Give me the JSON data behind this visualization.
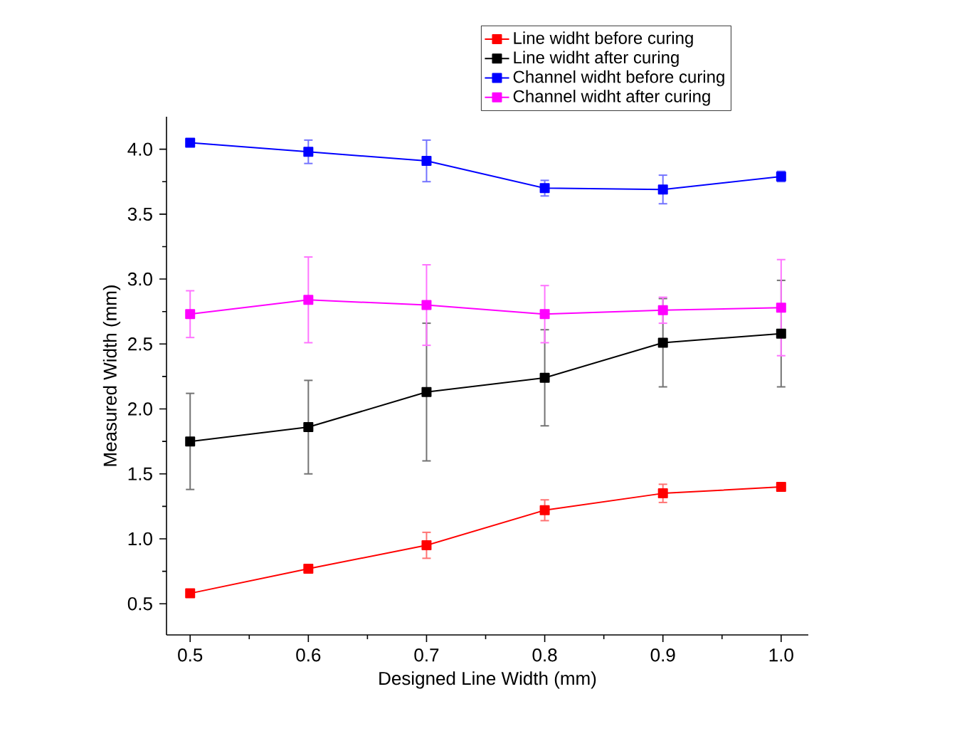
{
  "chart_data": {
    "type": "line",
    "xlabel": "Designed Line Width (mm)",
    "ylabel": "Measured Width (mm)",
    "x": [
      0.5,
      0.6,
      0.7,
      0.8,
      0.9,
      1.0
    ],
    "series": [
      {
        "name": "Line widht before curing",
        "color": "#ff0000",
        "values": [
          0.58,
          0.77,
          0.95,
          1.22,
          1.35,
          1.4
        ],
        "errors": [
          0.02,
          0.02,
          0.1,
          0.08,
          0.07,
          0.03
        ]
      },
      {
        "name": "Line widht after curing",
        "color": "#000000",
        "values": [
          1.75,
          1.86,
          2.13,
          2.24,
          2.51,
          2.58
        ],
        "errors": [
          0.37,
          0.36,
          0.53,
          0.37,
          0.34,
          0.41
        ]
      },
      {
        "name": "Channel widht before curing",
        "color": "#0000ff",
        "values": [
          4.05,
          3.98,
          3.91,
          3.7,
          3.69,
          3.79
        ],
        "errors": [
          0.02,
          0.09,
          0.16,
          0.06,
          0.11,
          0.04
        ]
      },
      {
        "name": "Channel widht after curing",
        "color": "#ff00ff",
        "values": [
          2.73,
          2.84,
          2.8,
          2.73,
          2.76,
          2.78
        ],
        "errors": [
          0.18,
          0.33,
          0.31,
          0.22,
          0.1,
          0.37
        ]
      }
    ],
    "xlim": [
      0.48,
      1.023
    ],
    "ylim": [
      0.26,
      4.25
    ],
    "xticks": [
      0.5,
      0.6,
      0.7,
      0.8,
      0.9,
      {
        "value": 1,
        "label": "1.0"
      }
    ],
    "yticks": [
      0.5,
      {
        "value": 1,
        "label": "1.0"
      },
      1.5,
      {
        "value": 2,
        "label": "2.0"
      },
      2.5,
      {
        "value": 3,
        "label": "3.0"
      },
      3.5,
      {
        "value": 4,
        "label": "4.0"
      }
    ],
    "marker": "square",
    "line_style": "solid",
    "legend": "top right",
    "grid": false
  }
}
